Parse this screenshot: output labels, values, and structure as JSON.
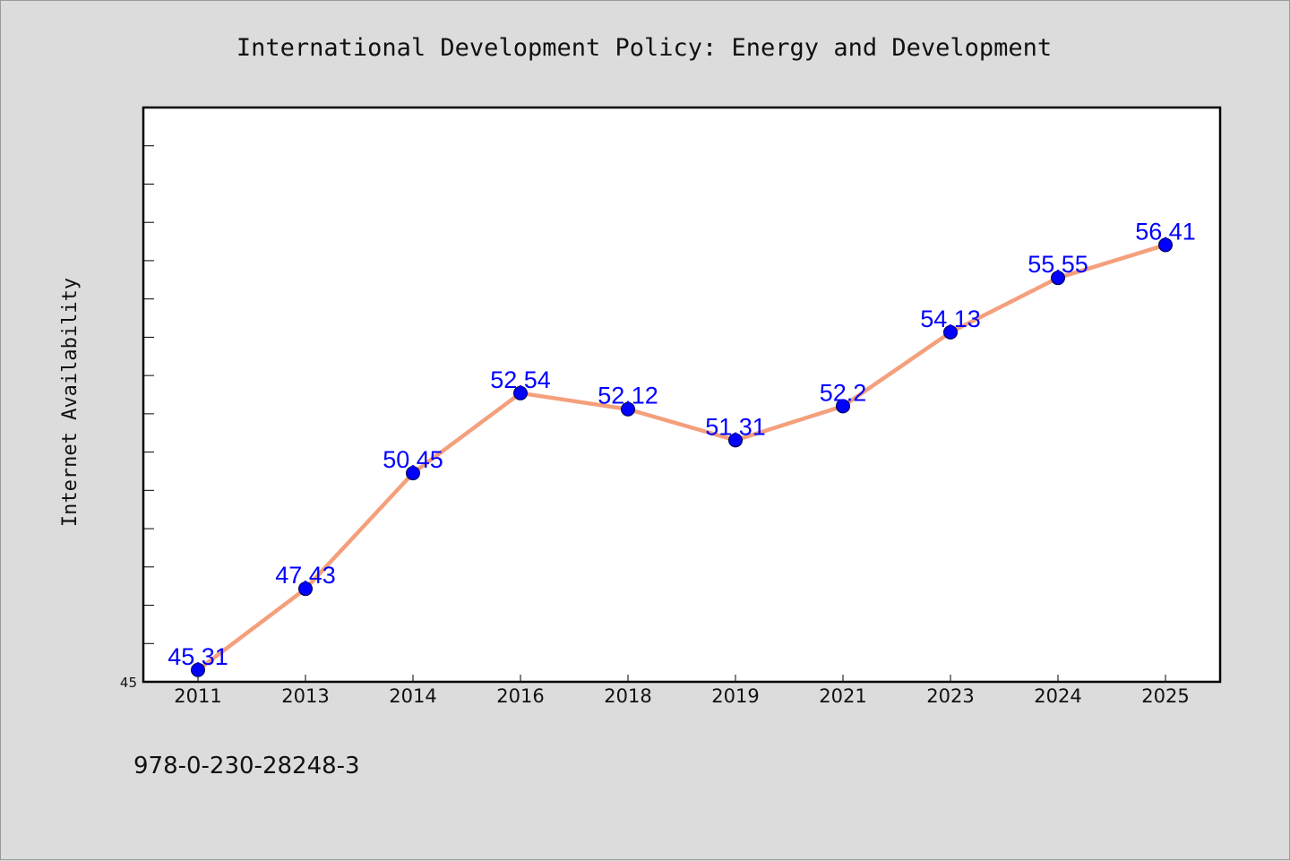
{
  "chart_data": {
    "type": "line",
    "title": "International Development Policy: Energy and Development",
    "xlabel": "",
    "ylabel": "Internet Availability",
    "categories": [
      "2011",
      "2013",
      "2014",
      "2016",
      "2018",
      "2019",
      "2021",
      "2023",
      "2024",
      "2025"
    ],
    "series": [
      {
        "values": [
          45.31,
          47.43,
          50.45,
          52.54,
          52.12,
          51.31,
          52.2,
          54.13,
          55.55,
          56.41
        ],
        "labels": [
          "45.31",
          "47.43",
          "50.45",
          "52.54",
          "52.12",
          "51.31",
          "52.2",
          "54.13",
          "55.55",
          "56.41"
        ],
        "line_color": "#f4a07c",
        "marker_color": "#0000ff"
      }
    ],
    "ytick_labels": [
      "45"
    ],
    "ylim": [
      45,
      60
    ],
    "grid": false,
    "legend": "none"
  },
  "footer": {
    "isbn": "978-0-230-28248-3"
  },
  "colors": {
    "background": "#dcdcdc",
    "plot_background": "#ffffff",
    "axis": "#000000"
  }
}
